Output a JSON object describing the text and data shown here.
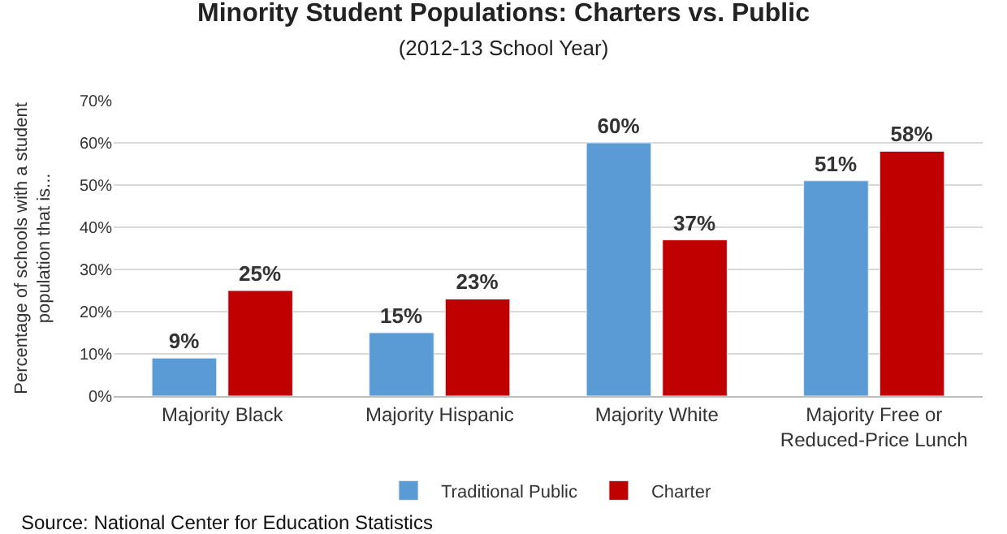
{
  "chart_data": {
    "type": "bar",
    "title": "Minority Student Populations: Charters vs. Public",
    "subtitle": "(2012-13 School Year)",
    "ylabel": "Percentage of schools with a student population that is...",
    "categories": [
      "Majority Black",
      "Majority Hispanic",
      "Majority White",
      "Majority Free or Reduced-Price Lunch"
    ],
    "series": [
      {
        "name": "Traditional Public",
        "color": "#5b9bd5",
        "values": [
          9,
          15,
          60,
          51
        ],
        "value_labels": [
          "9%",
          "15%",
          "60%",
          "51%"
        ]
      },
      {
        "name": "Charter",
        "color": "#c00000",
        "values": [
          25,
          23,
          37,
          58
        ],
        "value_labels": [
          "25%",
          "23%",
          "37%",
          "58%"
        ]
      }
    ],
    "ylim": [
      0,
      70
    ],
    "yticks": [
      {
        "value": 0,
        "label": "0%"
      },
      {
        "value": 10,
        "label": "10%"
      },
      {
        "value": 20,
        "label": "20%"
      },
      {
        "value": 30,
        "label": "30%"
      },
      {
        "value": 40,
        "label": "40%"
      },
      {
        "value": 50,
        "label": "50%"
      },
      {
        "value": 60,
        "label": "60%"
      },
      {
        "value": 70,
        "label": "70%"
      }
    ],
    "grid": "y",
    "legend": "bottom",
    "annotations": [
      "Source: National Center for Education Statistics"
    ]
  }
}
